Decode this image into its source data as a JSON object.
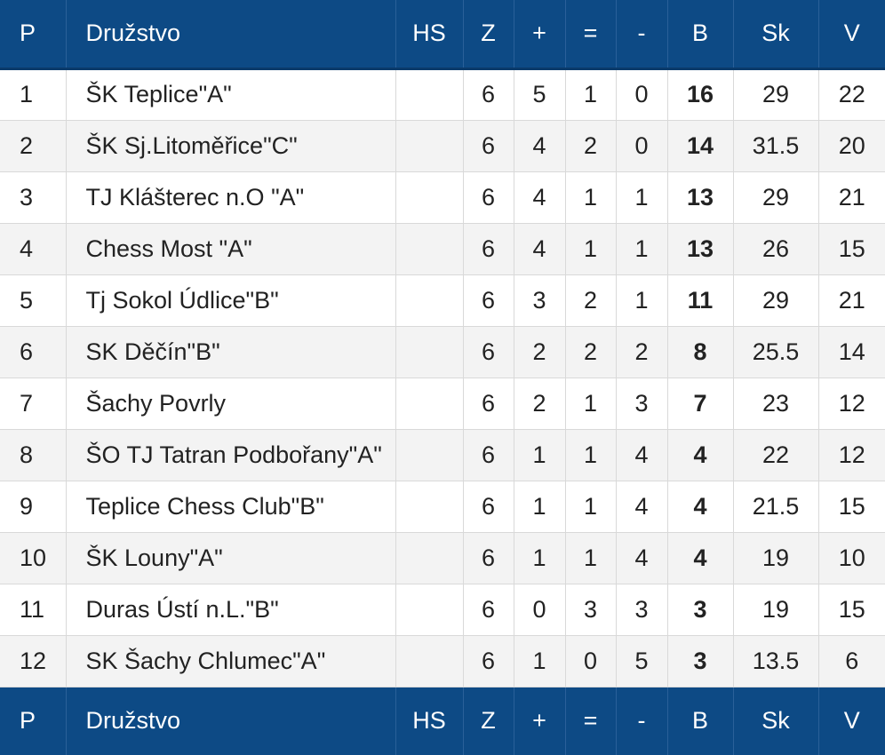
{
  "columns": [
    "P",
    "Družstvo",
    "HS",
    "Z",
    "+",
    "=",
    "-",
    "B",
    "Sk",
    "V"
  ],
  "rows": [
    {
      "p": "1",
      "team": "ŠK Teplice\"A\"",
      "hs": "",
      "z": "6",
      "w": "5",
      "d": "1",
      "l": "0",
      "b": "16",
      "sk": "29",
      "v": "22"
    },
    {
      "p": "2",
      "team": "ŠK Sj.Litoměřice\"C\"",
      "hs": "",
      "z": "6",
      "w": "4",
      "d": "2",
      "l": "0",
      "b": "14",
      "sk": "31.5",
      "v": "20"
    },
    {
      "p": "3",
      "team": "TJ Klášterec n.O \"A\"",
      "hs": "",
      "z": "6",
      "w": "4",
      "d": "1",
      "l": "1",
      "b": "13",
      "sk": "29",
      "v": "21"
    },
    {
      "p": "4",
      "team": "Chess Most \"A\"",
      "hs": "",
      "z": "6",
      "w": "4",
      "d": "1",
      "l": "1",
      "b": "13",
      "sk": "26",
      "v": "15"
    },
    {
      "p": "5",
      "team": "Tj Sokol Údlice\"B\"",
      "hs": "",
      "z": "6",
      "w": "3",
      "d": "2",
      "l": "1",
      "b": "11",
      "sk": "29",
      "v": "21"
    },
    {
      "p": "6",
      "team": "SK Děčín\"B\"",
      "hs": "",
      "z": "6",
      "w": "2",
      "d": "2",
      "l": "2",
      "b": "8",
      "sk": "25.5",
      "v": "14"
    },
    {
      "p": "7",
      "team": "Šachy Povrly",
      "hs": "",
      "z": "6",
      "w": "2",
      "d": "1",
      "l": "3",
      "b": "7",
      "sk": "23",
      "v": "12"
    },
    {
      "p": "8",
      "team": "ŠO TJ Tatran Podbořany\"A\"",
      "hs": "",
      "z": "6",
      "w": "1",
      "d": "1",
      "l": "4",
      "b": "4",
      "sk": "22",
      "v": "12"
    },
    {
      "p": "9",
      "team": "Teplice Chess Club\"B\"",
      "hs": "",
      "z": "6",
      "w": "1",
      "d": "1",
      "l": "4",
      "b": "4",
      "sk": "21.5",
      "v": "15"
    },
    {
      "p": "10",
      "team": "ŠK Louny\"A\"",
      "hs": "",
      "z": "6",
      "w": "1",
      "d": "1",
      "l": "4",
      "b": "4",
      "sk": "19",
      "v": "10"
    },
    {
      "p": "11",
      "team": "Duras Ústí n.L.\"B\"",
      "hs": "",
      "z": "6",
      "w": "0",
      "d": "3",
      "l": "3",
      "b": "3",
      "sk": "19",
      "v": "15"
    },
    {
      "p": "12",
      "team": "SK Šachy Chlumec\"A\"",
      "hs": "",
      "z": "6",
      "w": "1",
      "d": "0",
      "l": "5",
      "b": "3",
      "sk": "13.5",
      "v": "6"
    }
  ]
}
